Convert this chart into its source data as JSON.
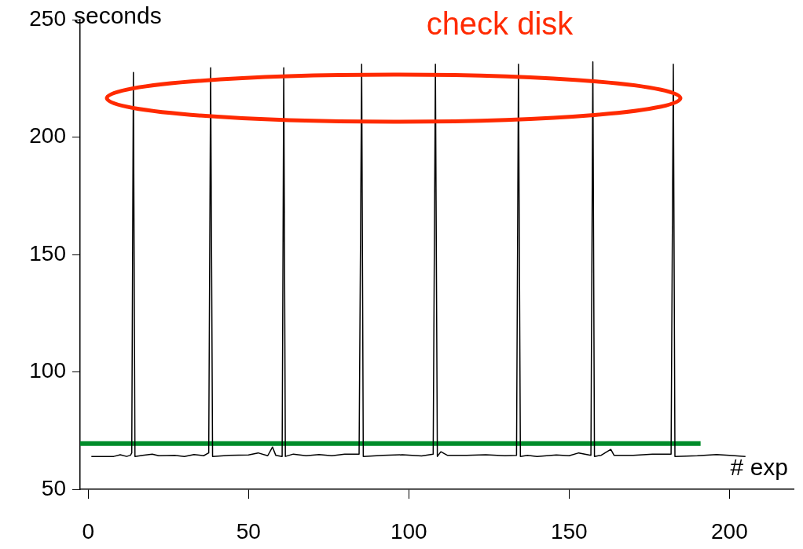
{
  "chart_data": {
    "type": "line",
    "xlabel": "# exp",
    "ylabel": "seconds",
    "annotations": [
      "check disk"
    ],
    "xlim": [
      -2.5,
      220
    ],
    "xticks": [
      0,
      50,
      100,
      150,
      200
    ],
    "ylim": [
      50,
      250
    ],
    "yticks": [
      50,
      100,
      150,
      200,
      250
    ],
    "grid": false,
    "legend": false,
    "series": [
      {
        "color": "#000000",
        "x": [
          1,
          8,
          10,
          12,
          13.2,
          13.6,
          14.1,
          14.6,
          17,
          20,
          22,
          27,
          30,
          33,
          36,
          37.6,
          38.2,
          38.8,
          44,
          50,
          53,
          56,
          57.5,
          58.5,
          60.5,
          61,
          61.5,
          64,
          68,
          72,
          76,
          80,
          84.5,
          85.3,
          85.8,
          92,
          98,
          104,
          107.6,
          108.3,
          108.9,
          110,
          112,
          118,
          124,
          130,
          133.6,
          134.2,
          134.8,
          137,
          140,
          146,
          150,
          153,
          156.8,
          157.4,
          157.9,
          160,
          163,
          164,
          170,
          176,
          181.8,
          182.5,
          183,
          190,
          196,
          200,
          205
        ],
        "values": [
          64,
          64,
          64.7,
          64,
          64.5,
          65.5,
          227.5,
          64,
          64.5,
          65,
          64.3,
          64.5,
          64,
          64.8,
          64.3,
          65.5,
          229.5,
          64,
          64.5,
          64.6,
          65.5,
          64.3,
          68,
          64.5,
          64,
          229.5,
          64,
          65,
          64.3,
          64.8,
          64.3,
          65,
          65,
          231,
          64,
          64.5,
          64.7,
          64.2,
          65,
          231,
          64,
          66,
          64.5,
          64.5,
          64.7,
          64.3,
          64.5,
          231,
          64,
          64.5,
          64,
          64.6,
          64.3,
          65.5,
          64.5,
          232,
          64,
          64.5,
          67,
          64.5,
          64.5,
          65,
          65,
          231,
          64,
          64.3,
          64.8,
          64.5,
          64
        ]
      },
      {
        "color": "#008c2a",
        "x": [
          -2.5,
          191
        ],
        "values": [
          69.5,
          69.5
        ]
      }
    ]
  }
}
